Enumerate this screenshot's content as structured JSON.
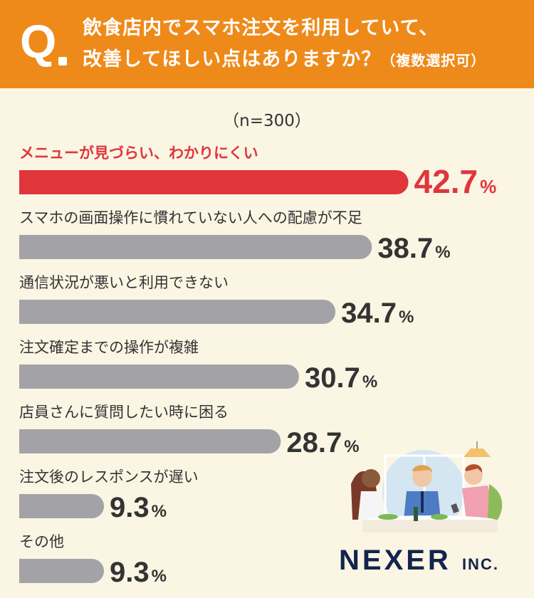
{
  "header": {
    "q_letter": "Q",
    "line1": "飲食店内でスマホ注文を利用していて、",
    "line2": "改善してほしい点はありますか？",
    "line2_sub": "（複数選択可）"
  },
  "sample_size": "（n=300）",
  "brand": {
    "name": "NEXER",
    "suffix": "INC."
  },
  "colors": {
    "header": "#EE8A1A",
    "highlight": "#E0353B",
    "bar": "#A3A3A7",
    "background": "#FBF5E4"
  },
  "chart_data": {
    "type": "bar",
    "orientation": "horizontal",
    "unit": "%",
    "categories": [
      "メニューが見づらい、わかりにくい",
      "スマホの画面操作に慣れていない人への配慮が不足",
      "通信状況が悪いと利用できない",
      "注文確定までの操作が複雑",
      "店員さんに質問したい時に困る",
      "注文後のレスポンスが遅い",
      "その他"
    ],
    "values": [
      42.7,
      38.7,
      34.7,
      30.7,
      28.7,
      9.3,
      9.3
    ],
    "value_labels": [
      "42.7",
      "38.7",
      "34.7",
      "30.7",
      "28.7",
      "9.3",
      "9.3"
    ],
    "highlight_index": 0
  }
}
